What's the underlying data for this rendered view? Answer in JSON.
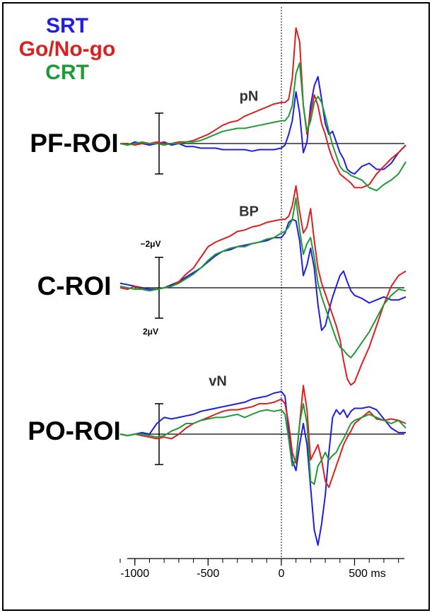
{
  "chart_data": [
    {
      "type": "line",
      "title": "PF-ROI",
      "annotation": "pN",
      "xlim": [
        -1100,
        850
      ],
      "ylim": [
        -8,
        8
      ],
      "inverted": true,
      "scale_bar": [
        -2,
        2
      ],
      "x": [
        -1100,
        -1050,
        -1000,
        -950,
        -900,
        -850,
        -800,
        -750,
        -700,
        -650,
        -600,
        -550,
        -500,
        -450,
        -400,
        -350,
        -300,
        -250,
        -200,
        -150,
        -100,
        -50,
        0,
        25,
        50,
        75,
        100,
        125,
        150,
        175,
        200,
        225,
        250,
        275,
        300,
        325,
        350,
        375,
        400,
        425,
        450,
        475,
        500,
        550,
        600,
        650,
        700,
        750,
        800,
        850
      ],
      "series": [
        {
          "name": "SRT",
          "color": "#1f1fdc",
          "values": [
            0,
            0.1,
            -0.1,
            0,
            0.1,
            0,
            -0.1,
            0.1,
            0,
            0.2,
            0.2,
            0.3,
            0.3,
            0.3,
            0.4,
            0.4,
            0.4,
            0.4,
            0.5,
            0.4,
            0.4,
            0.4,
            0.3,
            0.1,
            -0.6,
            -1.5,
            -3.4,
            -2.0,
            0.6,
            -0.1,
            -2.5,
            -3.8,
            -4.4,
            -2.9,
            -1.3,
            -0.6,
            -0.8,
            -0.1,
            0.6,
            1.0,
            1.7,
            1.9,
            2.0,
            1.5,
            1.3,
            1.7,
            1.7,
            1.3,
            0.6,
            0.1
          ]
        },
        {
          "name": "Go/No-go",
          "color": "#dc1f1f",
          "values": [
            0,
            0,
            0.1,
            0,
            0,
            -0.1,
            0,
            0,
            -0.1,
            -0.1,
            -0.2,
            -0.4,
            -0.6,
            -0.9,
            -1.2,
            -1.4,
            -1.5,
            -1.8,
            -2.0,
            -2.2,
            -2.4,
            -2.6,
            -2.7,
            -2.7,
            -2.9,
            -4.3,
            -7.6,
            -6.7,
            -2.5,
            -0.6,
            -2.0,
            -3.2,
            -2.5,
            -1.3,
            -0.6,
            0.3,
            1.0,
            1.5,
            2.0,
            2.2,
            2.4,
            2.6,
            2.9,
            2.9,
            2.7,
            2.0,
            1.5,
            1.0,
            0.6,
            0.1
          ]
        },
        {
          "name": "CRT",
          "color": "#1f9a36",
          "values": [
            0,
            0.1,
            0,
            -0.1,
            0,
            0,
            0.1,
            0,
            0,
            -0.1,
            -0.1,
            -0.2,
            -0.4,
            -0.6,
            -0.8,
            -0.9,
            -1.0,
            -1.0,
            -1.1,
            -1.2,
            -1.3,
            -1.4,
            -1.5,
            -1.5,
            -1.8,
            -2.5,
            -4.6,
            -5.3,
            -2.5,
            -0.8,
            -1.5,
            -2.7,
            -3.1,
            -2.7,
            -1.8,
            -0.8,
            0.1,
            0.8,
            1.5,
            1.8,
            1.9,
            2.1,
            2.2,
            2.4,
            2.9,
            3.1,
            2.7,
            2.4,
            2.0,
            1.2
          ]
        }
      ]
    },
    {
      "type": "line",
      "title": "C-ROI",
      "annotation": "BP",
      "xlim": [
        -1100,
        850
      ],
      "ylim": [
        -8,
        8
      ],
      "inverted": true,
      "scale_bar": [
        {
          "value": -2,
          "label": "−2μV"
        },
        {
          "value": 2,
          "label": "2μV"
        }
      ],
      "x": [
        -1100,
        -1050,
        -1000,
        -950,
        -900,
        -850,
        -800,
        -750,
        -700,
        -650,
        -600,
        -550,
        -500,
        -450,
        -400,
        -350,
        -300,
        -250,
        -200,
        -150,
        -100,
        -50,
        0,
        25,
        50,
        75,
        100,
        125,
        150,
        175,
        200,
        225,
        250,
        275,
        300,
        325,
        350,
        375,
        400,
        425,
        450,
        475,
        500,
        550,
        600,
        650,
        700,
        750,
        800,
        850
      ],
      "series": [
        {
          "color": "#1f1fdc",
          "values": [
            -0.3,
            -0.2,
            -0.1,
            0,
            0.1,
            0.1,
            0,
            -0.2,
            -0.4,
            -0.7,
            -1.0,
            -1.3,
            -1.7,
            -2.1,
            -2.4,
            -2.5,
            -2.7,
            -2.8,
            -2.9,
            -3.0,
            -3.1,
            -3.3,
            -3.3,
            -3.6,
            -4.3,
            -4.5,
            -4.4,
            -3.1,
            -0.8,
            -1.5,
            -2.6,
            -1.3,
            1.1,
            2.8,
            2.5,
            1.5,
            0.6,
            -0.1,
            -0.8,
            -1.1,
            -0.4,
            0.2,
            0.5,
            0.7,
            1.0,
            0.8,
            0.6,
            0.8,
            0.8,
            0.6
          ]
        },
        {
          "color": "#dc1f1f",
          "values": [
            0,
            0.1,
            -0.1,
            0.1,
            0.2,
            0.1,
            0,
            -0.1,
            -0.4,
            -0.9,
            -1.3,
            -2.0,
            -2.7,
            -3.0,
            -3.2,
            -3.4,
            -3.7,
            -3.8,
            -4.0,
            -4.1,
            -4.3,
            -4.4,
            -4.5,
            -4.5,
            -4.7,
            -5.4,
            -6.7,
            -5.0,
            -3.6,
            -4.0,
            -5.2,
            -3.1,
            -1.3,
            -0.3,
            0.4,
            1.1,
            1.8,
            2.5,
            3.4,
            4.8,
            6.0,
            6.4,
            6.2,
            5.0,
            3.9,
            2.5,
            1.1,
            -0.1,
            -0.8,
            -1.1
          ]
        },
        {
          "color": "#1f9a36",
          "values": [
            -0.1,
            0,
            0.1,
            0.1,
            0.2,
            0.1,
            0,
            -0.1,
            -0.3,
            -0.6,
            -0.9,
            -1.3,
            -1.8,
            -2.2,
            -2.4,
            -2.6,
            -2.7,
            -2.7,
            -2.9,
            -3.0,
            -3.2,
            -3.3,
            -3.6,
            -3.7,
            -4.0,
            -4.5,
            -5.9,
            -3.8,
            -2.2,
            -2.9,
            -3.3,
            -2.0,
            -0.3,
            0.6,
            1.3,
            2.0,
            2.7,
            3.4,
            3.9,
            4.1,
            4.4,
            4.6,
            4.3,
            3.6,
            2.9,
            2.0,
            1.1,
            0.5,
            0.1,
            0.2
          ]
        }
      ]
    },
    {
      "type": "line",
      "title": "PO-ROI",
      "annotation": "vN",
      "xlim": [
        -1100,
        850
      ],
      "ylim": [
        -8,
        8
      ],
      "inverted": true,
      "scale_bar": [
        -2,
        2
      ],
      "xticks": [
        -1000,
        -500,
        0,
        {
          "value": 500,
          "label": "500 ms"
        }
      ],
      "xticks_minor": [
        -1100,
        -1000,
        -900,
        -800,
        -700,
        -600,
        -500,
        -400,
        -300,
        -200,
        -100,
        0,
        100,
        200,
        300,
        400,
        500,
        600,
        700,
        800
      ],
      "x": [
        -1100,
        -1050,
        -1000,
        -950,
        -900,
        -850,
        -800,
        -750,
        -700,
        -650,
        -600,
        -550,
        -500,
        -450,
        -400,
        -350,
        -300,
        -250,
        -200,
        -150,
        -100,
        -50,
        0,
        25,
        50,
        75,
        100,
        125,
        150,
        175,
        200,
        225,
        250,
        275,
        300,
        325,
        350,
        375,
        400,
        425,
        450,
        475,
        500,
        550,
        600,
        650,
        700,
        750,
        800,
        850
      ],
      "series": [
        {
          "color": "#1f1fdc",
          "values": [
            0,
            0.1,
            0,
            -0.1,
            0,
            -0.7,
            -1.1,
            -1.0,
            -1.1,
            -1.2,
            -1.3,
            -1.5,
            -1.6,
            -1.7,
            -1.8,
            -1.9,
            -2.0,
            -2.1,
            -2.3,
            -2.4,
            -2.5,
            -2.7,
            -2.8,
            -2.5,
            -0.2,
            1.7,
            2.4,
            0.7,
            -0.7,
            0.7,
            3.5,
            6.3,
            7.3,
            5.9,
            4.0,
            1.2,
            -1.1,
            -1.6,
            -1.3,
            -1.6,
            -1.1,
            -1.5,
            -1.7,
            -1.7,
            -1.8,
            -1.6,
            -1.0,
            -0.4,
            -0.1,
            -0.1
          ]
        },
        {
          "color": "#dc1f1f",
          "values": [
            0,
            0.1,
            0,
            0.1,
            0.2,
            0.3,
            0.2,
            0.3,
            0,
            -0.4,
            -0.7,
            -0.9,
            -1.1,
            -1.3,
            -1.5,
            -1.6,
            -1.6,
            -1.7,
            -1.8,
            -2.0,
            -2.0,
            -2.1,
            -2.3,
            -2.0,
            -0.7,
            1.2,
            1.9,
            -0.7,
            -3.2,
            -1.6,
            1.7,
            1.2,
            0.7,
            1.7,
            3.1,
            3.5,
            2.8,
            2.1,
            1.4,
            0.7,
            0.2,
            -0.2,
            -0.7,
            -1.1,
            -1.5,
            -1.0,
            -0.9,
            -1.0,
            -0.9,
            -0.7
          ]
        },
        {
          "color": "#1f9a36",
          "values": [
            0,
            0.1,
            0,
            0,
            0.1,
            0.2,
            0.1,
            -0.2,
            -0.4,
            -0.7,
            -0.7,
            -0.9,
            -1.0,
            -1.1,
            -1.1,
            -1.2,
            -1.3,
            -1.1,
            -1.3,
            -1.5,
            -1.6,
            -1.5,
            -1.6,
            -1.3,
            0.3,
            2.1,
            1.7,
            -0.7,
            -2.0,
            -0.7,
            3.1,
            3.3,
            2.1,
            1.7,
            1.2,
            1.7,
            1.4,
            1.2,
            0.7,
            0.3,
            -0.2,
            -0.7,
            -0.9,
            -1.1,
            -1.3,
            -1.1,
            -0.9,
            -0.7,
            -0.9,
            -0.4
          ]
        }
      ]
    }
  ]
}
